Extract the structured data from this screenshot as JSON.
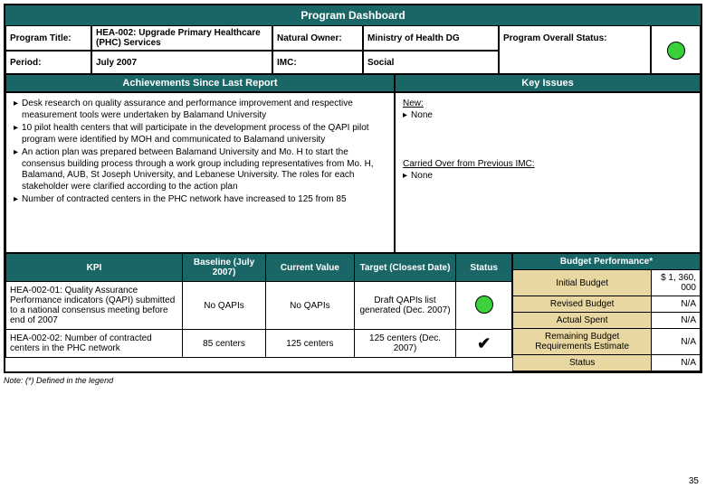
{
  "title": "Program Dashboard",
  "info": {
    "programTitleLabel": "Program Title:",
    "programTitleValue": "HEA-002: Upgrade Primary Healthcare (PHC) Services",
    "naturalOwnerLabel": "Natural Owner:",
    "naturalOwnerValue": "Ministry of Health DG",
    "periodLabel": "Period:",
    "periodValue": "July 2007",
    "imcLabel": "IMC:",
    "imcValue": "Social",
    "statusLabel": "Program Overall Status:"
  },
  "achievementsHeader": "Achievements Since Last Report",
  "achievements": [
    "Desk research on quality assurance and performance improvement and respective measurement  tools were undertaken by Balamand University",
    "10 pilot health centers that will participate in the development process of the QAPI pilot  program were identified by MOH and communicated to Balamand university",
    "An action plan was prepared between Balamand University and Mo. H to start the consensus building process through a work group including representatives from Mo. H, Balamand, AUB, St Joseph University, and Lebanese University. The roles for each stakeholder were clarified according to the action plan",
    "Number of contracted centers in the PHC network have increased to 125 from 85"
  ],
  "issuesHeader": "Key Issues",
  "issues": {
    "newLabel": "New:",
    "newItems": [
      "None"
    ],
    "carriedLabel": "Carried Over from Previous IMC:",
    "carriedItems": [
      "None"
    ]
  },
  "kpi": {
    "headers": [
      "KPI",
      "Baseline (July 2007)",
      "Current Value",
      "Target (Closest Date)",
      "Status"
    ],
    "rows": [
      {
        "name": "HEA-002-01: Quality Assurance Performance indicators (QAPI) submitted to a national consensus meeting before end of 2007",
        "baseline": "No QAPIs",
        "current": "No QAPIs",
        "target": "Draft QAPIs list generated (Dec. 2007)",
        "statusType": "green"
      },
      {
        "name": "HEA-002-02: Number of contracted centers in the PHC network",
        "baseline": "85 centers",
        "current": "125 centers",
        "target": "125 centers (Dec. 2007)",
        "statusType": "check"
      }
    ]
  },
  "budget": {
    "header": "Budget Performance*",
    "rows": [
      {
        "label": "Initial Budget",
        "value": "$ 1, 360, 000"
      },
      {
        "label": "Revised Budget",
        "value": "N/A"
      },
      {
        "label": "Actual Spent",
        "value": "N/A"
      },
      {
        "label": "Remaining Budget Requirements Estimate",
        "value": "N/A"
      },
      {
        "label": "Status",
        "value": "N/A"
      }
    ]
  },
  "note": "Note: (*) Defined in the legend",
  "pageNum": "35",
  "colors": {
    "teal": "#1a6666",
    "tan": "#e8d7a0",
    "green": "#3bd13b"
  }
}
